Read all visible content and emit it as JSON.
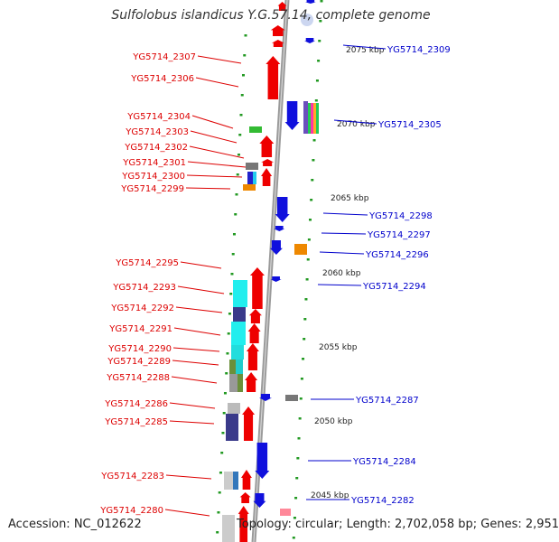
{
  "title": "Sulfolobus islandicus Y.G.57.14, complete genome",
  "accession_text": "Accession: NC_012622",
  "summary_text": "Topology: circular; Length: 2,702,058 bp; Genes: 2,951",
  "colors": {
    "forward_gene": "#ee0000",
    "reverse_gene": "#1010dd",
    "backbone": "#9a9a9a",
    "tick": "#229922",
    "left_label": "#dd0000",
    "right_label": "#0000cc",
    "kbp_label": "#222222"
  },
  "kbp_marks": [
    "2075 kbp",
    "2070 kbp",
    "2065 kbp",
    "2060 kbp",
    "2055 kbp",
    "2050 kbp",
    "2045 kbp"
  ],
  "left_labels": [
    "YG5714_2307",
    "YG5714_2306",
    "YG5714_2304",
    "YG5714_2303",
    "YG5714_2302",
    "YG5714_2301",
    "YG5714_2300",
    "YG5714_2299",
    "YG5714_2295",
    "YG5714_2293",
    "YG5714_2292",
    "YG5714_2291",
    "YG5714_2290",
    "YG5714_2289",
    "YG5714_2288",
    "YG5714_2286",
    "YG5714_2285",
    "YG5714_2283",
    "YG5714_2280"
  ],
  "right_labels": [
    "YG5714_2309",
    "YG5714_2305",
    "YG5714_2298",
    "YG5714_2297",
    "YG5714_2296",
    "YG5714_2294",
    "YG5714_2287",
    "YG5714_2284",
    "YG5714_2282"
  ]
}
